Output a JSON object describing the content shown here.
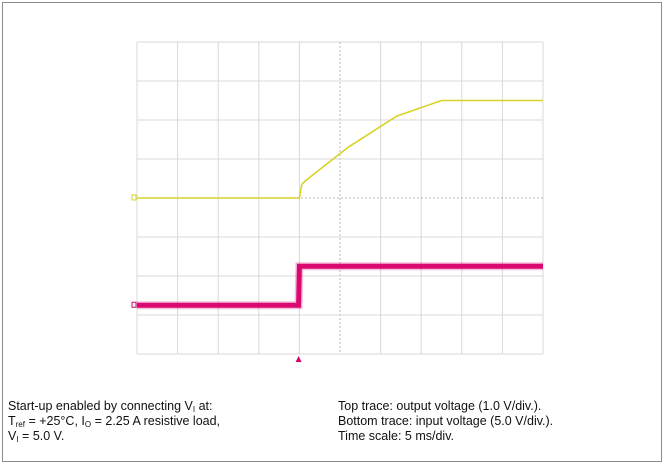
{
  "chart_data": {
    "type": "line",
    "title": "",
    "xlabel": "",
    "ylabel": "",
    "grid": true,
    "x_divisions": 10,
    "y_divisions": 8,
    "x_unit": "ms",
    "time_per_div": 5,
    "series": [
      {
        "name": "Top trace: output voltage",
        "color": "#d9d22a",
        "volts_per_div": 1.0,
        "x_ms": [
          0,
          20,
          20.3,
          20.8,
          26,
          32,
          37.5,
          50
        ],
        "y_volts": [
          0.0,
          0.0,
          0.35,
          0.45,
          1.3,
          2.1,
          2.5,
          2.5
        ]
      },
      {
        "name": "Bottom trace: input voltage",
        "color": "#d9006c",
        "volts_per_div": 5.0,
        "x_ms": [
          0,
          19.9,
          20.0,
          50
        ],
        "y_volts": [
          0.0,
          0.0,
          5.0,
          5.0
        ]
      }
    ]
  },
  "caption": {
    "left": {
      "line1_prefix": "Start-up enabled by connecting V",
      "line1_sub": "I",
      "line1_suffix": " at:",
      "line2_t": "T",
      "line2_t_sub": "ref",
      "line2_mid": "  = +25°C, I",
      "line2_i_sub": "O",
      "line2_suffix": " = 2.25 A resistive load,",
      "line3_v": "V",
      "line3_v_sub": "I",
      "line3_suffix": "  = 5.0 V."
    },
    "right": {
      "line1": "Top trace: output voltage (1.0 V/div.).",
      "line2": "Bottom trace: input voltage (5.0 V/div.).",
      "line3": "Time scale: 5 ms/div."
    }
  },
  "colors": {
    "grid": "#d8d8d8",
    "grid_center": "#b8b8b8"
  }
}
